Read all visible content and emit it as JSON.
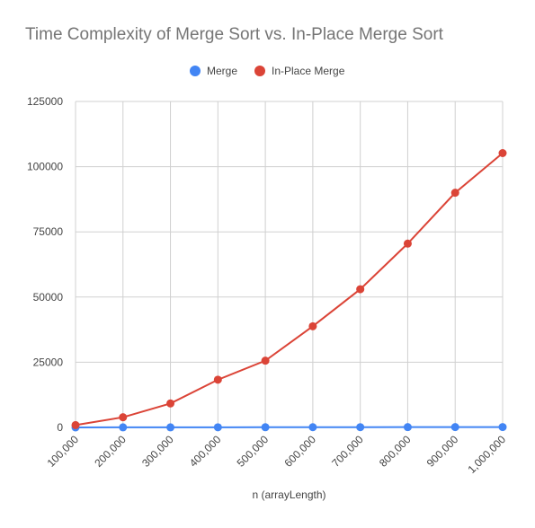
{
  "chart_data": {
    "type": "line",
    "title": "Time Complexity of Merge Sort vs. In-Place Merge Sort",
    "xlabel": "n (arrayLength)",
    "ylabel": "",
    "categories": [
      "100,000",
      "200,000",
      "300,000",
      "400,000",
      "500,000",
      "600,000",
      "700,000",
      "800,000",
      "900,000",
      "1,000,000"
    ],
    "y_ticks": [
      "0",
      "25000",
      "50000",
      "75000",
      "100000",
      "125000"
    ],
    "ylim": [
      0,
      125000
    ],
    "grid": true,
    "legend_position": "top",
    "series": [
      {
        "name": "Merge",
        "color": "#4285f4",
        "values": [
          10,
          25,
          40,
          55,
          70,
          85,
          100,
          115,
          130,
          150
        ]
      },
      {
        "name": "In-Place Merge",
        "color": "#db4437",
        "values": [
          900,
          3900,
          9200,
          18300,
          25600,
          38800,
          53000,
          70500,
          90000,
          105200
        ]
      }
    ]
  }
}
